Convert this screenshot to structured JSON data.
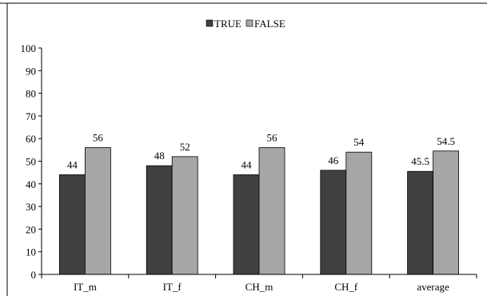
{
  "chart_data": {
    "type": "bar",
    "title": "",
    "xlabel": "",
    "ylabel": "",
    "categories": [
      "IT_m",
      "IT_f",
      "CH_m",
      "CH_f",
      "average"
    ],
    "series": [
      {
        "name": "TRUE",
        "values": [
          44,
          48,
          44,
          46,
          45.5
        ],
        "color": "#404040"
      },
      {
        "name": "FALSE",
        "values": [
          56,
          52,
          56,
          54,
          54.5
        ],
        "color": "#a6a6a6"
      }
    ],
    "data_labels": [
      [
        "44",
        "48",
        "44",
        "46",
        "45.5"
      ],
      [
        "56",
        "52",
        "56",
        "54",
        "54.5"
      ]
    ],
    "ylim": [
      0,
      100
    ],
    "yticks": [
      "0",
      "10",
      "20",
      "30",
      "40",
      "50",
      "60",
      "70",
      "80",
      "90",
      "100"
    ],
    "grid": false,
    "legend_position": "top-center"
  }
}
